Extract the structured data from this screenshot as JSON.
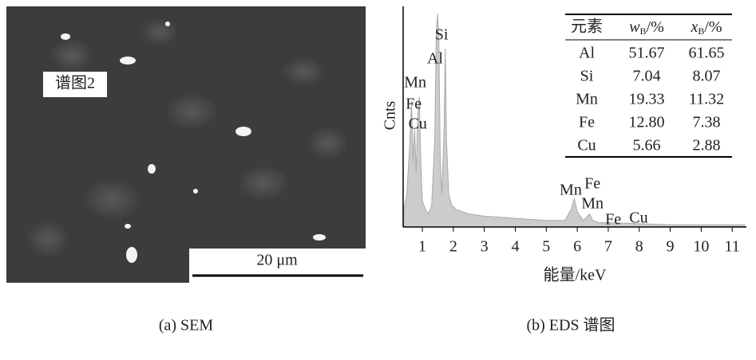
{
  "sem": {
    "label": "谱图2",
    "scale_bar": "20 μm",
    "caption": "(a) SEM"
  },
  "chart_data": {
    "type": "area",
    "caption": "(b) EDS 谱图",
    "x_label": "能量/keV",
    "y_label": "Cnts",
    "color": "#cccccc",
    "x": [
      0.4,
      0.5,
      0.6,
      0.65,
      0.7,
      0.75,
      0.8,
      0.85,
      0.9,
      0.95,
      1.0,
      1.1,
      1.2,
      1.3,
      1.4,
      1.45,
      1.49,
      1.53,
      1.58,
      1.63,
      1.7,
      1.74,
      1.78,
      1.85,
      1.95,
      2.1,
      2.5,
      3,
      4,
      5,
      5.6,
      5.8,
      5.9,
      6.0,
      6.2,
      6.4,
      6.5,
      6.7,
      7,
      8,
      9,
      10,
      11.4
    ],
    "values": [
      8,
      15,
      40,
      58,
      30,
      45,
      25,
      50,
      60,
      30,
      12,
      8,
      6,
      10,
      40,
      90,
      98,
      88,
      30,
      15,
      45,
      82,
      40,
      15,
      10,
      8,
      6,
      5,
      4,
      3,
      3,
      8,
      13,
      7,
      3,
      6,
      3,
      2,
      2,
      1.5,
      1,
      1,
      1
    ],
    "xlim": [
      0.38,
      11.46
    ],
    "ylim": [
      0,
      100
    ],
    "xticks": [
      1,
      2,
      3,
      4,
      5,
      6,
      7,
      8,
      9,
      10,
      11
    ],
    "annotations": [
      {
        "text": "Si",
        "x": 1.62,
        "y": 88
      },
      {
        "text": "Al",
        "x": 1.41,
        "y": 77
      },
      {
        "text": "Mn",
        "x": 0.77,
        "y": 66
      },
      {
        "text": "Fe",
        "x": 0.72,
        "y": 56
      },
      {
        "text": "Cu",
        "x": 0.85,
        "y": 47
      },
      {
        "text": "Mn",
        "x": 5.79,
        "y": 16.5
      },
      {
        "text": "Fe",
        "x": 6.49,
        "y": 19.4
      },
      {
        "text": "Mn",
        "x": 6.49,
        "y": 10.3
      },
      {
        "text": "Fe",
        "x": 7.16,
        "y": 3
      },
      {
        "text": "Cu",
        "x": 7.98,
        "y": 3.7
      }
    ]
  },
  "table": {
    "header": [
      "元素",
      {
        "symbol": "w",
        "sub": "B",
        "unit": "/%"
      },
      {
        "symbol": "x",
        "sub": "B",
        "unit": "/%"
      }
    ],
    "rows": [
      [
        "Al",
        "51.67",
        "61.65"
      ],
      [
        "Si",
        "7.04",
        "8.07"
      ],
      [
        "Mn",
        "19.33",
        "11.32"
      ],
      [
        "Fe",
        "12.80",
        "7.38"
      ],
      [
        "Cu",
        "5.66",
        "2.88"
      ]
    ]
  }
}
